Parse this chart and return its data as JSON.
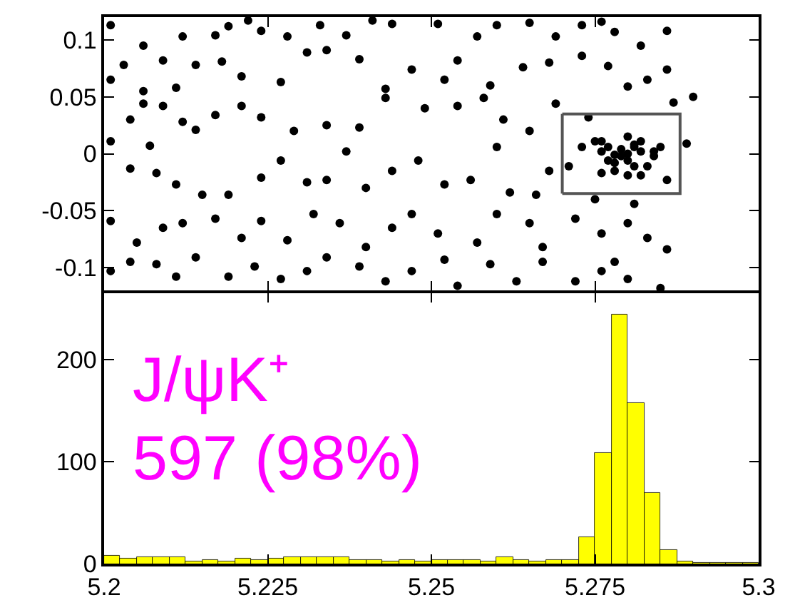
{
  "chart_data": [
    {
      "type": "scatter",
      "xlim": [
        5.2,
        5.3
      ],
      "xticks": [
        5.2,
        5.225,
        5.25,
        5.275,
        5.3
      ],
      "ylim": [
        -0.12,
        0.12
      ],
      "yticks": [
        -0.1,
        -0.05,
        0,
        0.05,
        0.1
      ],
      "tick_labels": "y",
      "marker": "circle",
      "series": [
        {
          "color": "#000000",
          "x": [
            5.201,
            5.206,
            5.212,
            5.217,
            5.219,
            5.222,
            5.224,
            5.228,
            5.233,
            5.237,
            5.241,
            5.244,
            5.251,
            5.257,
            5.26,
            5.265,
            5.269,
            5.273,
            5.276,
            5.278,
            5.282,
            5.286,
            5.203,
            5.209,
            5.214,
            5.218,
            5.221,
            5.227,
            5.231,
            5.234,
            5.239,
            5.243,
            5.247,
            5.252,
            5.254,
            5.259,
            5.264,
            5.268,
            5.273,
            5.277,
            5.28,
            5.283,
            5.286,
            5.206,
            5.211,
            5.201,
            5.206,
            5.209,
            5.204,
            5.212,
            5.217,
            5.221,
            5.224,
            5.229,
            5.234,
            5.239,
            5.243,
            5.249,
            5.254,
            5.258,
            5.261,
            5.265,
            5.269,
            5.274,
            5.207,
            5.214,
            5.29,
            5.287,
            5.275,
            5.276,
            5.277,
            5.279,
            5.28,
            5.282,
            5.283,
            5.278,
            5.28,
            5.281,
            5.277,
            5.282,
            5.284,
            5.279,
            5.28,
            5.278,
            5.281,
            5.276,
            5.285,
            5.273,
            5.286,
            5.289,
            5.28,
            5.282,
            5.276,
            5.281,
            5.278,
            5.284,
            5.201,
            5.204,
            5.208,
            5.211,
            5.215,
            5.219,
            5.224,
            5.227,
            5.231,
            5.234,
            5.237,
            5.24,
            5.244,
            5.248,
            5.252,
            5.256,
            5.26,
            5.262,
            5.266,
            5.271,
            5.268,
            5.275,
            5.281,
            5.201,
            5.205,
            5.209,
            5.212,
            5.217,
            5.221,
            5.224,
            5.228,
            5.232,
            5.236,
            5.24,
            5.244,
            5.247,
            5.251,
            5.257,
            5.26,
            5.265,
            5.267,
            5.272,
            5.276,
            5.28,
            5.283,
            5.286,
            5.201,
            5.204,
            5.208,
            5.211,
            5.214,
            5.219,
            5.223,
            5.227,
            5.231,
            5.234,
            5.239,
            5.243,
            5.247,
            5.252,
            5.254,
            5.259,
            5.263,
            5.267,
            5.272,
            5.276,
            5.28,
            5.285,
            5.278
          ],
          "values": [
            0.113,
            0.095,
            0.103,
            0.104,
            0.112,
            0.117,
            0.108,
            0.103,
            0.113,
            0.104,
            0.117,
            0.114,
            0.114,
            0.103,
            0.113,
            0.115,
            0.103,
            0.113,
            0.116,
            0.107,
            0.095,
            0.108,
            0.078,
            0.082,
            0.078,
            0.081,
            0.068,
            0.063,
            0.089,
            0.091,
            0.083,
            0.057,
            0.074,
            0.065,
            0.082,
            0.06,
            0.076,
            0.08,
            0.086,
            0.077,
            0.059,
            0.065,
            0.074,
            0.055,
            0.058,
            0.065,
            0.044,
            0.042,
            0.03,
            0.028,
            0.034,
            0.042,
            0.032,
            0.02,
            0.025,
            0.023,
            0.049,
            0.04,
            0.042,
            0.049,
            0.03,
            0.02,
            0.044,
            0.032,
            0.007,
            0.021,
            0.05,
            0.045,
            0.011,
            0.002,
            0.006,
            -0.002,
            -0.006,
            0.002,
            -0.011,
            -0.015,
            0.015,
            0.008,
            -0.006,
            0.011,
            -0.002,
            0.004,
            0.0,
            -0.001,
            -0.011,
            0.011,
            0.006,
            0.006,
            -0.023,
            0.009,
            -0.019,
            -0.019,
            -0.017,
            0.006,
            -0.008,
            0.002,
            0.011,
            -0.013,
            -0.017,
            -0.027,
            -0.036,
            -0.036,
            -0.021,
            -0.006,
            -0.025,
            -0.023,
            0.002,
            -0.03,
            -0.015,
            -0.006,
            -0.027,
            -0.023,
            0.006,
            -0.034,
            -0.036,
            -0.011,
            -0.015,
            -0.04,
            -0.044,
            -0.059,
            -0.078,
            -0.065,
            -0.061,
            -0.057,
            -0.074,
            -0.059,
            -0.076,
            -0.053,
            -0.061,
            -0.082,
            -0.065,
            -0.053,
            -0.07,
            -0.078,
            -0.053,
            -0.061,
            -0.082,
            -0.057,
            -0.07,
            -0.061,
            -0.074,
            -0.084,
            -0.103,
            -0.095,
            -0.097,
            -0.108,
            -0.091,
            -0.108,
            -0.099,
            -0.11,
            -0.103,
            -0.091,
            -0.099,
            -0.112,
            -0.103,
            -0.093,
            -0.116,
            -0.097,
            -0.112,
            -0.095,
            -0.112,
            -0.103,
            -0.11,
            -0.118,
            -0.095
          ]
        },
        {
          "type": "line",
          "color": "#555555",
          "marker": "none",
          "x": [
            5.27,
            5.288,
            5.288,
            5.27
          ],
          "values": [
            0.035,
            0.035,
            -0.035,
            -0.035
          ]
        },
        {
          "type": "line",
          "color": "#555555",
          "marker": "none",
          "x": [
            5.27,
            5.27
          ],
          "values": [
            -0.035,
            0.035
          ]
        }
      ]
    },
    {
      "type": "histogram",
      "xlim": [
        5.2,
        5.3
      ],
      "xticks": [
        5.2,
        5.225,
        5.25,
        5.275,
        5.3
      ],
      "ylim": [
        0,
        265
      ],
      "yticks": [
        0,
        100,
        200
      ],
      "color": "#ffff00",
      "bins": [
        5.2,
        5.2025,
        5.205,
        5.2075,
        5.21,
        5.2125,
        5.215,
        5.2175,
        5.22,
        5.2225,
        5.225,
        5.2275,
        5.23,
        5.2325,
        5.235,
        5.2375,
        5.24,
        5.2425,
        5.245,
        5.2475,
        5.25,
        5.2525,
        5.255,
        5.2575,
        5.26,
        5.2625,
        5.265,
        5.2675,
        5.27,
        5.2725,
        5.275,
        5.2775,
        5.28,
        5.2825,
        5.285,
        5.2875,
        5.29,
        5.2925,
        5.295,
        5.2975,
        5.3
      ],
      "values": [
        8,
        5,
        6,
        7,
        7,
        2,
        3,
        2,
        5,
        4,
        5,
        6,
        6,
        7,
        6,
        3,
        3,
        2,
        4,
        2,
        4,
        4,
        4,
        2,
        6,
        3,
        2,
        3,
        4,
        26,
        109,
        244,
        157,
        69,
        13,
        2,
        1,
        1,
        1,
        1
      ],
      "annotations": [
        "J/ψK⁺",
        "597 (98%)"
      ]
    }
  ]
}
